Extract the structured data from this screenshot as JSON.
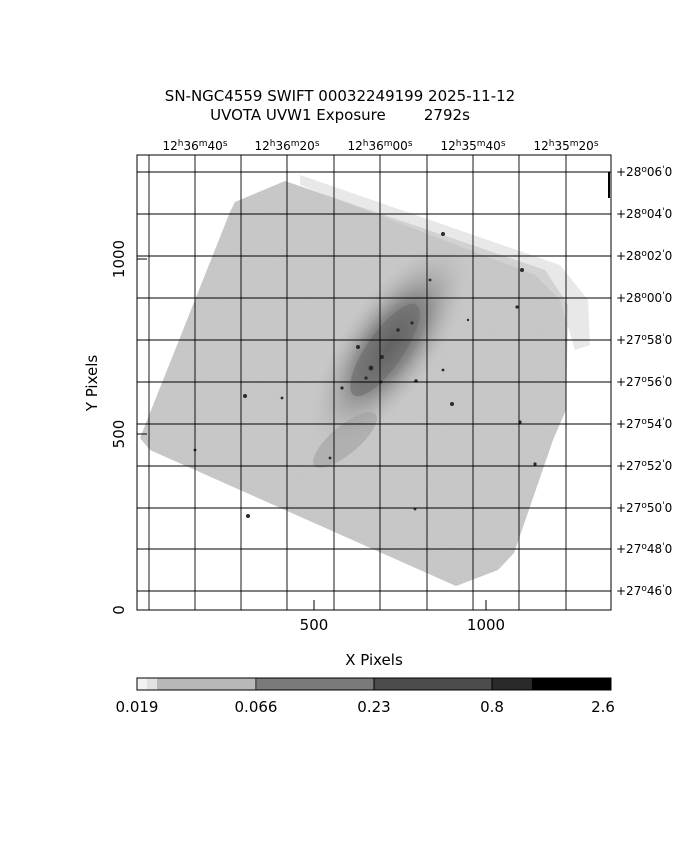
{
  "header": {
    "title_line1": "SN-NGC4559 SWIFT 00032249199 2025-11-12",
    "title_line2": "UVOTA UVW1 Exposure        2792s"
  },
  "axes": {
    "xlabel": "X Pixels",
    "ylabel": "Y Pixels",
    "x_ticks": [
      "500",
      "1000"
    ],
    "y_ticks": [
      "0",
      "500",
      "1000"
    ],
    "ra_ticks": [
      {
        "h": "12",
        "m": "36",
        "s": "40"
      },
      {
        "h": "12",
        "m": "36",
        "s": "20"
      },
      {
        "h": "12",
        "m": "36",
        "s": "00"
      },
      {
        "h": "12",
        "m": "35",
        "s": "40"
      },
      {
        "h": "12",
        "m": "35",
        "s": "20"
      }
    ],
    "dec_ticks": [
      {
        "d": "+28",
        "m": "06",
        "s": "0"
      },
      {
        "d": "+28",
        "m": "04",
        "s": "0"
      },
      {
        "d": "+28",
        "m": "02",
        "s": "0"
      },
      {
        "d": "+28",
        "m": "00",
        "s": "0"
      },
      {
        "d": "+27",
        "m": "58",
        "s": "0"
      },
      {
        "d": "+27",
        "m": "56",
        "s": "0"
      },
      {
        "d": "+27",
        "m": "54",
        "s": "0"
      },
      {
        "d": "+27",
        "m": "52",
        "s": "0"
      },
      {
        "d": "+27",
        "m": "50",
        "s": "0"
      },
      {
        "d": "+27",
        "m": "48",
        "s": "0"
      },
      {
        "d": "+27",
        "m": "46",
        "s": "0"
      }
    ]
  },
  "colorbar": {
    "labels": [
      "0.019",
      "0.066",
      "0.23",
      "0.8",
      "2.6"
    ]
  }
}
